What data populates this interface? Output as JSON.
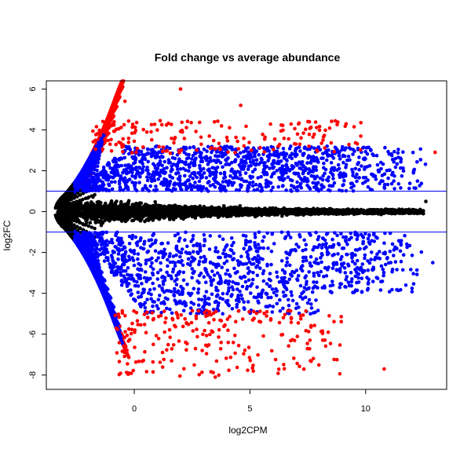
{
  "chart_data": {
    "type": "scatter",
    "title": "Fold change vs average abundance",
    "xlabel": "log2CPM",
    "ylabel": "log2FC",
    "xlim": [
      -3.8,
      13.5
    ],
    "ylim": [
      -8.7,
      6.4
    ],
    "x_ticks": [
      0,
      5,
      10
    ],
    "y_ticks": [
      6,
      4,
      2,
      0,
      -2,
      -4,
      -6,
      -8
    ],
    "reference_lines": [
      1,
      -1
    ],
    "grid": false,
    "legend": "none",
    "colors": {
      "not_significant": "#000000",
      "significant": "#0000ff",
      "extreme": "#ff0000",
      "reference_line": "#0000ff"
    },
    "series": [
      {
        "color_key": "not_significant",
        "points_note": "dense band around log2FC 0 plus funnel at low log2CPM",
        "x": [
          -3.3,
          -3.1,
          -2.9,
          -2.7,
          -2.5,
          -2.3,
          -2.1,
          -1.9,
          -1.7,
          -1.5,
          -1.3,
          -1.1,
          -0.9,
          -0.7,
          -0.5,
          -0.3,
          -0.1,
          0.2,
          0.6,
          1.0,
          1.5,
          2.0,
          2.5,
          3.0,
          3.5,
          4.0,
          4.5,
          5.0,
          5.5,
          6.0,
          6.5,
          7.0,
          7.5,
          8.0,
          8.5,
          9.0,
          9.5,
          10.0,
          10.5,
          11.0,
          11.5,
          12.0
        ],
        "y": [
          0.2,
          0.5,
          -0.4,
          0.8,
          -0.7,
          1.0,
          -1.0,
          1.4,
          -1.3,
          0.9,
          -0.9,
          0.6,
          -0.6,
          0.4,
          -0.4,
          0.3,
          -0.3,
          0.2,
          -0.2,
          0.1,
          -0.1,
          0.2,
          -0.2,
          0.1,
          -0.1,
          0.1,
          -0.1,
          0.05,
          -0.05,
          0.1,
          -0.1,
          0.05,
          -0.05,
          0.0,
          0.1,
          -0.1,
          0.05,
          0.0,
          0.1,
          -0.1,
          0.2,
          0.5
        ]
      }
    ],
    "significant_x_range": [
      -2.2,
      12.6
    ],
    "significant_y_up": [
      1.0,
      3.2
    ],
    "significant_y_down": [
      -1.0,
      -5.0
    ],
    "extreme_threshold_up": 2.8,
    "extreme_threshold_down": -4.8,
    "notable_points": [
      {
        "x": 2.0,
        "y": 6.0,
        "color_key": "extreme"
      },
      {
        "x": -0.4,
        "y": 5.4,
        "color_key": "extreme"
      },
      {
        "x": 4.6,
        "y": 5.2,
        "color_key": "extreme"
      },
      {
        "x": 13.0,
        "y": 2.9,
        "color_key": "extreme"
      },
      {
        "x": 12.9,
        "y": -2.5,
        "color_key": "significant"
      },
      {
        "x": 10.8,
        "y": -7.7,
        "color_key": "extreme"
      },
      {
        "x": 3.5,
        "y": -8.1,
        "color_key": "extreme"
      },
      {
        "x": 12.6,
        "y": 0.5,
        "color_key": "not_significant"
      }
    ]
  }
}
